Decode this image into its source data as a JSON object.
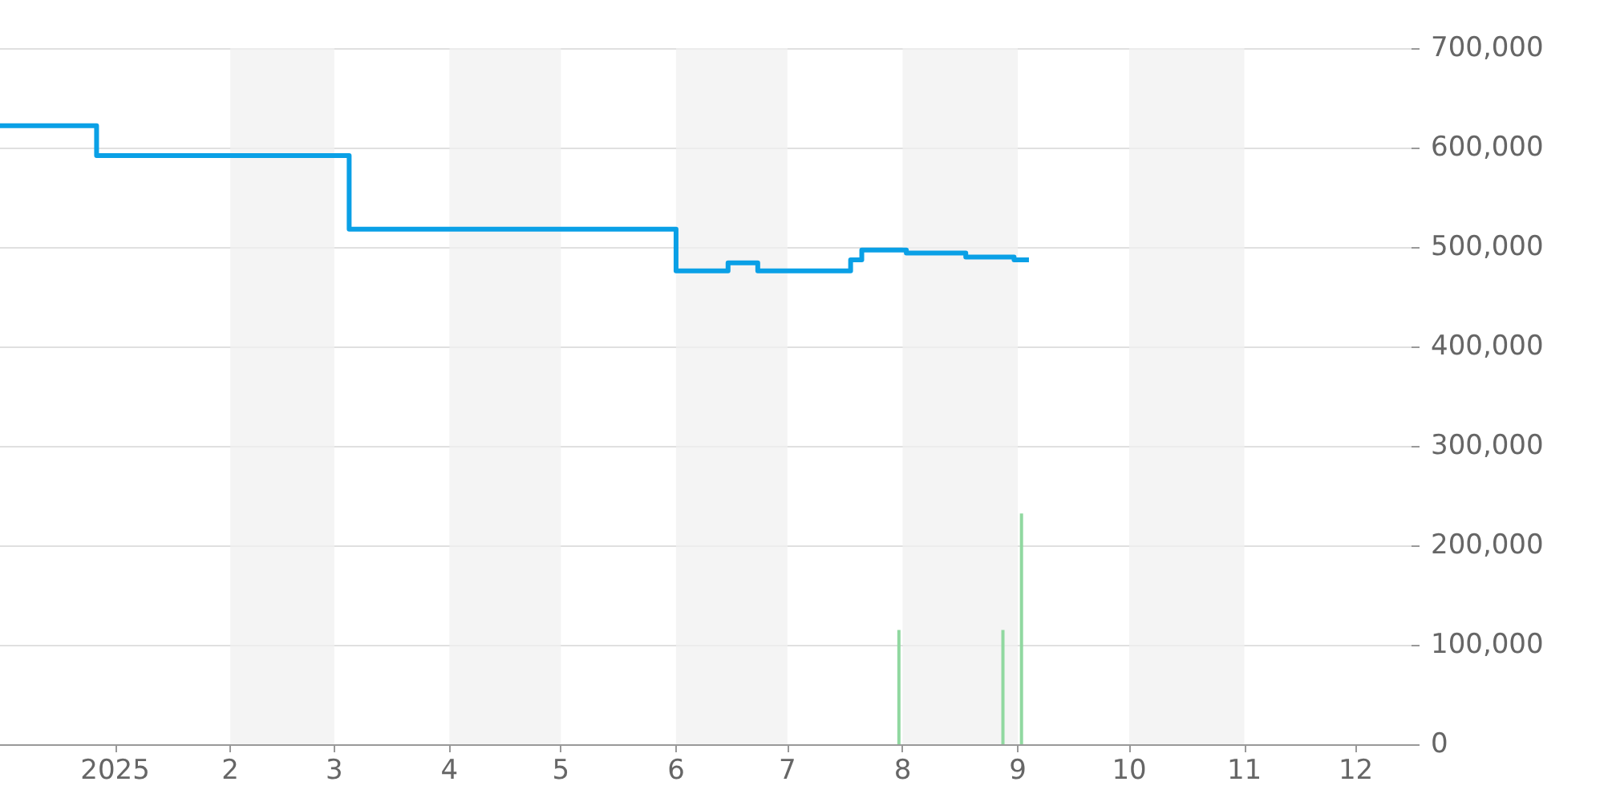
{
  "chart_data": {
    "type": "step",
    "xlim": [
      "2024-12-01",
      "2025-12-16"
    ],
    "xticks": [
      {
        "value": "2025-01-01",
        "label": "2025"
      },
      {
        "value": "2025-02-01",
        "label": "2"
      },
      {
        "value": "2025-03-01",
        "label": "3"
      },
      {
        "value": "2025-04-01",
        "label": "4"
      },
      {
        "value": "2025-05-01",
        "label": "5"
      },
      {
        "value": "2025-06-01",
        "label": "6"
      },
      {
        "value": "2025-07-01",
        "label": "7"
      },
      {
        "value": "2025-08-01",
        "label": "8"
      },
      {
        "value": "2025-09-01",
        "label": "9"
      },
      {
        "value": "2025-10-01",
        "label": "10"
      },
      {
        "value": "2025-11-01",
        "label": "11"
      },
      {
        "value": "2025-12-01",
        "label": "12"
      }
    ],
    "ylim": [
      0,
      700000
    ],
    "yticks": [
      {
        "value": 0,
        "label": "0"
      },
      {
        "value": 100000,
        "label": "100,000"
      },
      {
        "value": 200000,
        "label": "200,000"
      },
      {
        "value": 300000,
        "label": "300,000"
      },
      {
        "value": 400000,
        "label": "400,000"
      },
      {
        "value": 500000,
        "label": "500,000"
      },
      {
        "value": 600000,
        "label": "600,000"
      },
      {
        "value": 700000,
        "label": "700,000"
      }
    ],
    "grid": "y",
    "marker": "none",
    "series": [
      {
        "type": "bar",
        "color": "#90d8a0",
        "x": [
          "2025-07-31",
          "2025-08-28",
          "2025-09-02"
        ],
        "values": [
          115000,
          115000,
          232000
        ]
      },
      {
        "color": "#0aa0e6",
        "x": [
          "2024-12-01",
          "2024-12-27",
          "2025-03-05",
          "2025-06-01",
          "2025-06-15",
          "2025-06-23",
          "2025-07-18",
          "2025-07-21",
          "2025-08-02",
          "2025-08-18",
          "2025-08-31",
          "2025-09-04"
        ],
        "values": [
          622000,
          592000,
          518000,
          476000,
          484000,
          476000,
          487000,
          497000,
          494000,
          490000,
          487000,
          487000
        ]
      }
    ]
  }
}
